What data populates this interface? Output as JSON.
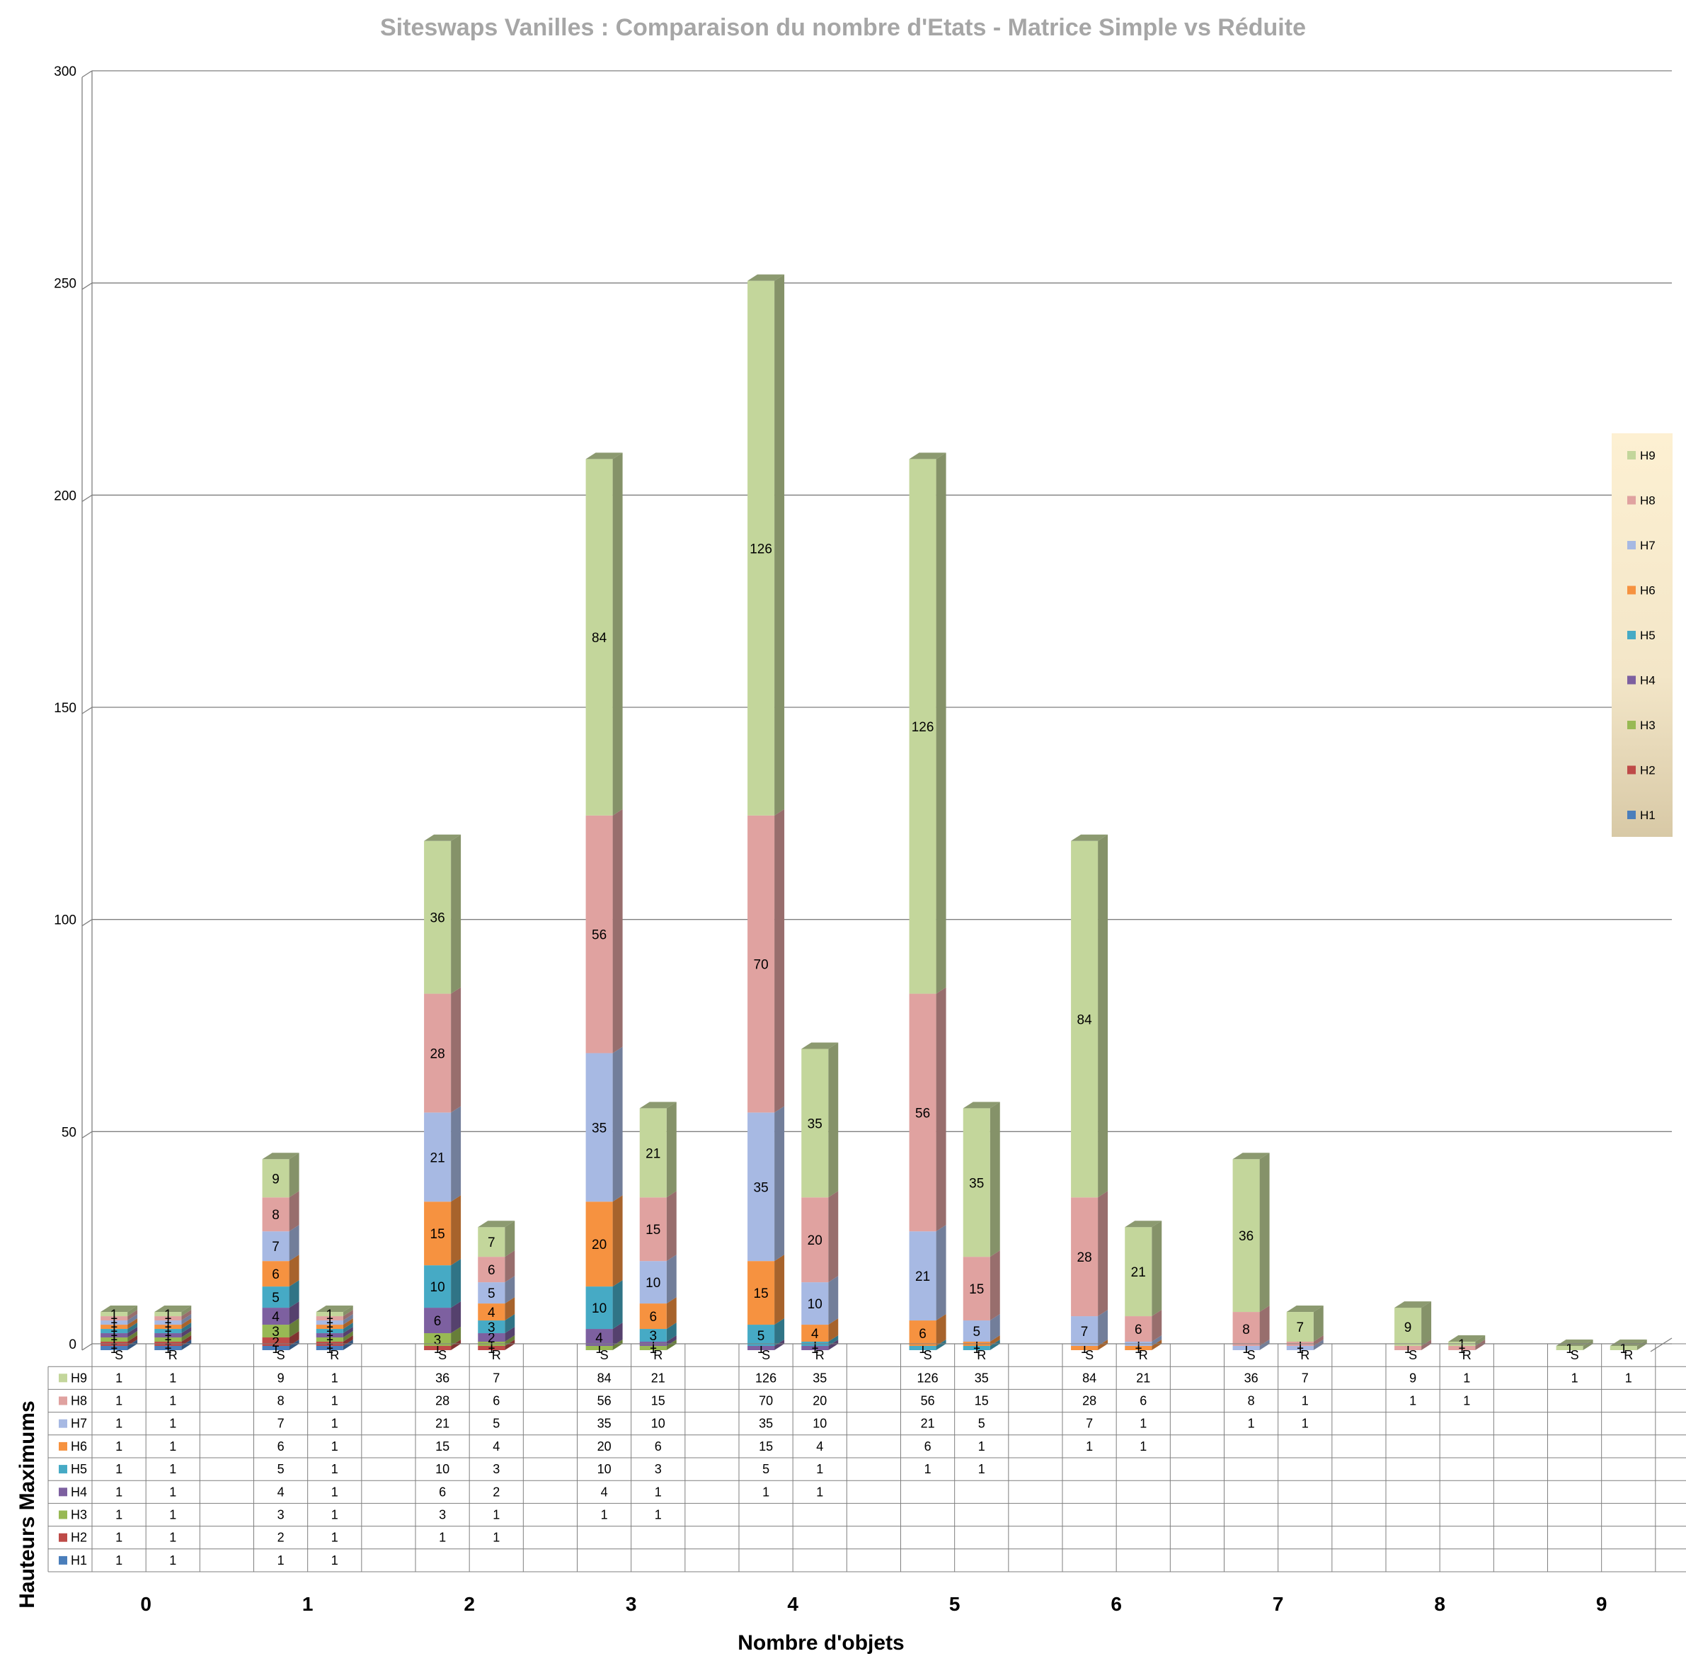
{
  "chart_data": {
    "type": "bar",
    "stacked": true,
    "three_d": true,
    "title": "Siteswaps Vanilles : Comparaison du nombre d'Etats  -  Matrice Simple vs Réduite",
    "xlabel": "Nombre d'objets",
    "ylabel": "Hauteurs Maximums",
    "ylim": [
      0,
      300
    ],
    "yticks": [
      "0",
      "50",
      "100",
      "150",
      "200",
      "250",
      "300"
    ],
    "grid": true,
    "legend_position": "right",
    "categories": [
      "0",
      "1",
      "2",
      "3",
      "4",
      "5",
      "6",
      "7",
      "8",
      "9"
    ],
    "sub_categories": [
      "S",
      "R"
    ],
    "series": [
      {
        "name": "H1",
        "color": "#4a7ebb",
        "S": [
          1,
          1,
          null,
          null,
          null,
          null,
          null,
          null,
          null,
          null
        ],
        "R": [
          1,
          1,
          null,
          null,
          null,
          null,
          null,
          null,
          null,
          null
        ]
      },
      {
        "name": "H2",
        "color": "#be4b48",
        "S": [
          1,
          2,
          1,
          null,
          null,
          null,
          null,
          null,
          null,
          null
        ],
        "R": [
          1,
          1,
          1,
          null,
          null,
          null,
          null,
          null,
          null,
          null
        ]
      },
      {
        "name": "H3",
        "color": "#98b954",
        "S": [
          1,
          3,
          3,
          1,
          null,
          null,
          null,
          null,
          null,
          null
        ],
        "R": [
          1,
          1,
          1,
          1,
          null,
          null,
          null,
          null,
          null,
          null
        ]
      },
      {
        "name": "H4",
        "color": "#7d60a0",
        "S": [
          1,
          4,
          6,
          4,
          1,
          null,
          null,
          null,
          null,
          null
        ],
        "R": [
          1,
          1,
          2,
          1,
          1,
          null,
          null,
          null,
          null,
          null
        ]
      },
      {
        "name": "H5",
        "color": "#46aac5",
        "S": [
          1,
          5,
          10,
          10,
          5,
          1,
          null,
          null,
          null,
          null
        ],
        "R": [
          1,
          1,
          3,
          3,
          1,
          1,
          null,
          null,
          null,
          null
        ]
      },
      {
        "name": "H6",
        "color": "#f69240",
        "S": [
          1,
          6,
          15,
          20,
          15,
          6,
          1,
          null,
          null,
          null
        ],
        "R": [
          1,
          1,
          4,
          6,
          4,
          1,
          1,
          null,
          null,
          null
        ]
      },
      {
        "name": "H7",
        "color": "#a7b9e3",
        "S": [
          1,
          7,
          21,
          35,
          35,
          21,
          7,
          1,
          null,
          null
        ],
        "R": [
          1,
          1,
          5,
          10,
          10,
          5,
          1,
          1,
          null,
          null
        ]
      },
      {
        "name": "H8",
        "color": "#e0a2a0",
        "S": [
          1,
          8,
          28,
          56,
          70,
          56,
          28,
          8,
          1,
          null
        ],
        "R": [
          1,
          1,
          6,
          15,
          20,
          15,
          6,
          1,
          1,
          null
        ]
      },
      {
        "name": "H9",
        "color": "#c3d69b",
        "S": [
          1,
          9,
          36,
          84,
          126,
          126,
          84,
          36,
          9,
          1
        ],
        "R": [
          1,
          1,
          7,
          21,
          35,
          35,
          21,
          7,
          1,
          1
        ]
      }
    ]
  }
}
